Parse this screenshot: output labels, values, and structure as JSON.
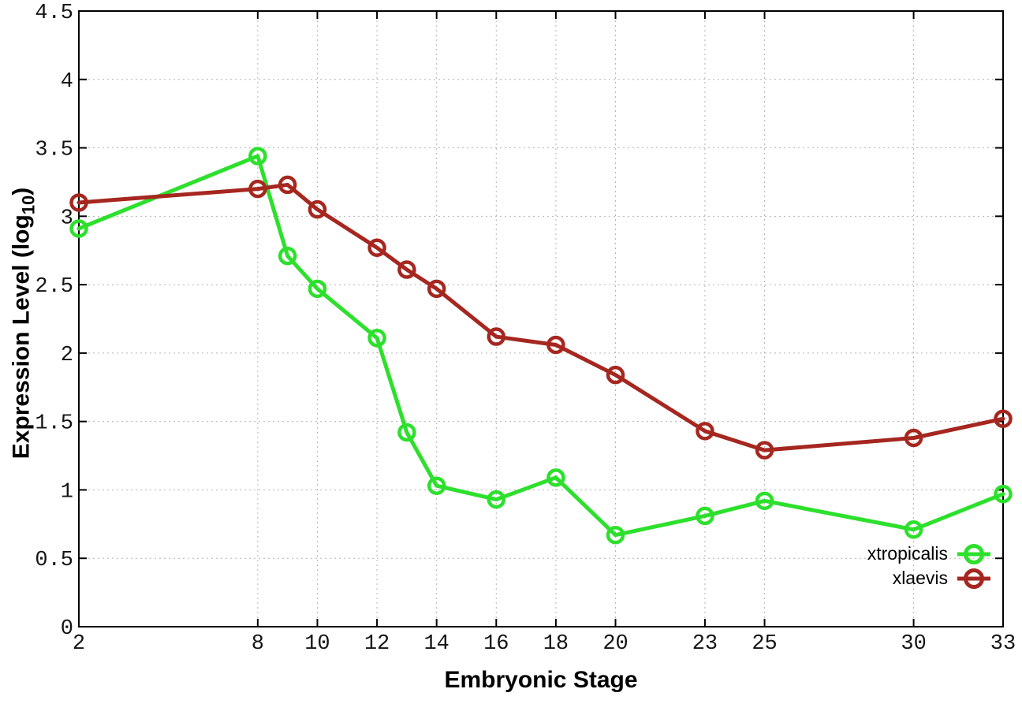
{
  "figure": {
    "xlabel": "Embryonic Stage",
    "ylabel_prefix": "Expression Level (log",
    "ylabel_sub": "10",
    "ylabel_suffix": ")"
  },
  "colors": {
    "xtropicalis": "#2ce02c",
    "xlaevis": "#a5271f",
    "axis": "#000000",
    "grid": "#b4b4b4",
    "background": "#ffffff"
  },
  "chart_data": {
    "type": "line",
    "title": "",
    "xlabel": "Embryonic Stage",
    "ylabel": "Expression Level (log10)",
    "x": [
      2,
      8,
      9,
      10,
      12,
      13,
      14,
      16,
      18,
      20,
      23,
      25,
      30,
      33
    ],
    "series": [
      {
        "name": "xtropicalis",
        "color": "#2ce02c",
        "values": [
          2.91,
          3.44,
          2.71,
          2.47,
          2.11,
          1.42,
          1.03,
          0.93,
          1.09,
          0.67,
          0.81,
          0.92,
          0.71,
          0.97
        ]
      },
      {
        "name": "xlaevis",
        "color": "#a5271f",
        "values": [
          3.1,
          3.2,
          3.23,
          3.05,
          2.77,
          2.61,
          2.47,
          2.12,
          2.06,
          1.84,
          1.43,
          1.29,
          1.38,
          1.52
        ]
      }
    ],
    "xticks": [
      2,
      8,
      10,
      12,
      14,
      16,
      18,
      20,
      23,
      25,
      30,
      33
    ],
    "yticks": [
      0,
      0.5,
      1,
      1.5,
      2,
      2.5,
      3,
      3.5,
      4,
      4.5
    ],
    "xlim": [
      2,
      33
    ],
    "ylim": [
      0,
      4.5
    ],
    "grid": true,
    "marker": "open-circle",
    "legend_position": "bottom-right-inside",
    "legend_entries": [
      "xtropicalis",
      "xlaevis"
    ]
  }
}
